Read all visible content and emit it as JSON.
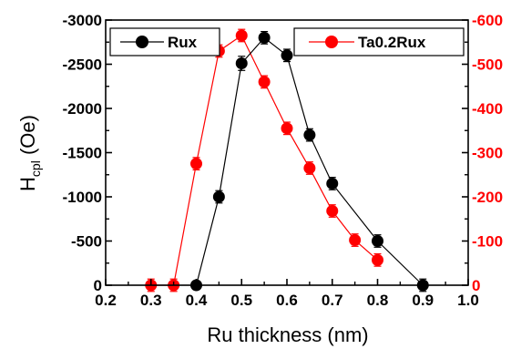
{
  "chart_data": {
    "type": "line",
    "xlabel": "Ru thickness (nm)",
    "ylabel": {
      "main": "H",
      "sub": "cpl",
      "unit": " (Oe)"
    },
    "xlim": [
      0.2,
      1.0
    ],
    "x_ticks": [
      "0.2",
      "0.3",
      "0.4",
      "0.5",
      "0.6",
      "0.7",
      "0.8",
      "0.9",
      "1.0"
    ],
    "ylim_left": [
      0,
      -3000
    ],
    "y_left_ticks": [
      "0",
      "-500",
      "-1000",
      "-1500",
      "-2000",
      "-2500",
      "-3000"
    ],
    "ylim_right": [
      0,
      -600
    ],
    "y_right_ticks": [
      "0",
      "-100",
      "-200",
      "-300",
      "-400",
      "-500",
      "-600"
    ],
    "grid": false,
    "series": [
      {
        "name": "Rux",
        "axis": "left",
        "color": "#000000",
        "x": [
          0.4,
          0.45,
          0.5,
          0.55,
          0.6,
          0.65,
          0.7,
          0.8,
          0.9
        ],
        "y": [
          0,
          -1000,
          -2510,
          -2800,
          -2600,
          -1700,
          -1150,
          -500,
          0
        ],
        "err": [
          0,
          70,
          80,
          70,
          70,
          70,
          70,
          70,
          70
        ]
      },
      {
        "name": "Ta0.2Rux",
        "axis": "right",
        "color": "#ff0000",
        "x": [
          0.3,
          0.35,
          0.4,
          0.45,
          0.5,
          0.55,
          0.6,
          0.65,
          0.7,
          0.75,
          0.8
        ],
        "y": [
          0,
          0,
          -275,
          -530,
          -565,
          -460,
          -355,
          -265,
          -168,
          -102,
          -57
        ],
        "err": [
          14,
          14,
          14,
          14,
          14,
          14,
          14,
          14,
          14,
          14,
          14
        ]
      }
    ],
    "legends": [
      {
        "series": 0,
        "position": "top-left"
      },
      {
        "series": 1,
        "position": "top-right"
      }
    ]
  }
}
